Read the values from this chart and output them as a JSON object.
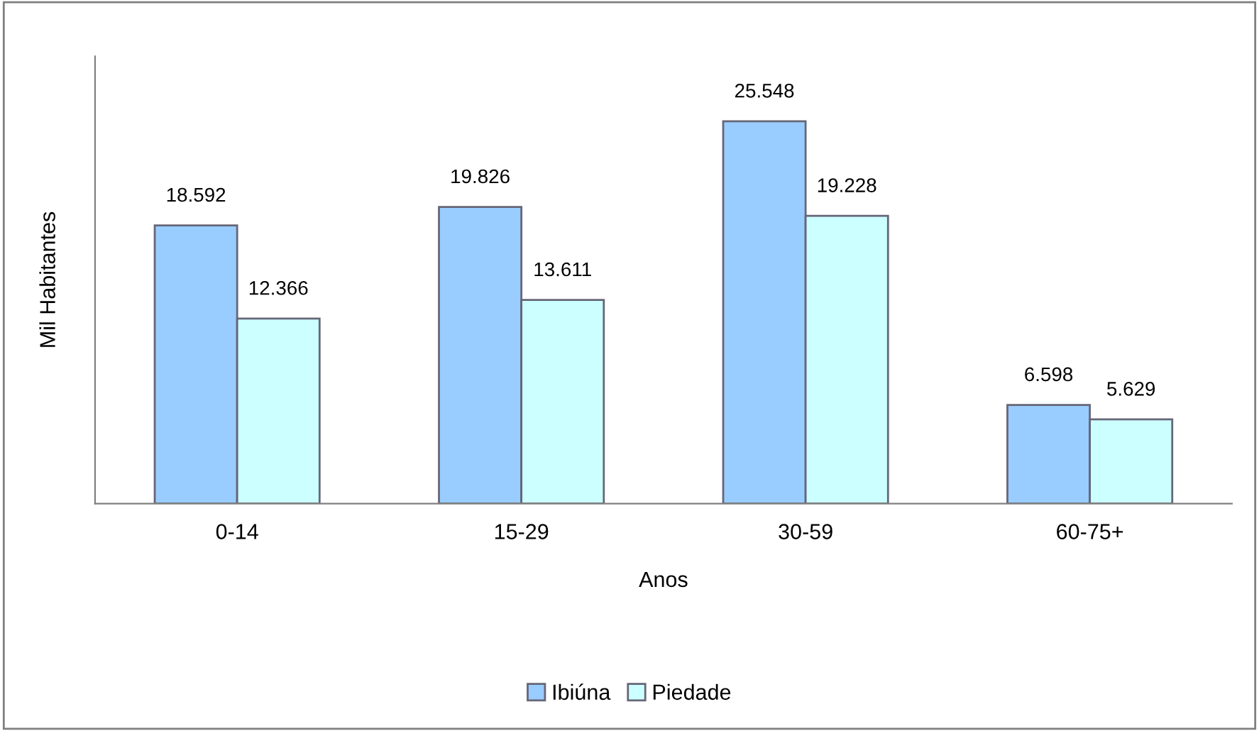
{
  "chart_data": {
    "type": "bar",
    "xlabel": "Anos",
    "ylabel": "Mil Habitantes",
    "categories": [
      "0-14",
      "15-29",
      "30-59",
      "60-75+"
    ],
    "series": [
      {
        "name": "Ibiúna",
        "color": "#99ccff",
        "values": [
          18.592,
          19.826,
          25.548,
          6.598
        ]
      },
      {
        "name": "Piedade",
        "color": "#ccffff",
        "values": [
          12.366,
          13.611,
          19.228,
          5.629
        ]
      }
    ],
    "data_labels": true,
    "legend": "bottom",
    "grid": false
  }
}
